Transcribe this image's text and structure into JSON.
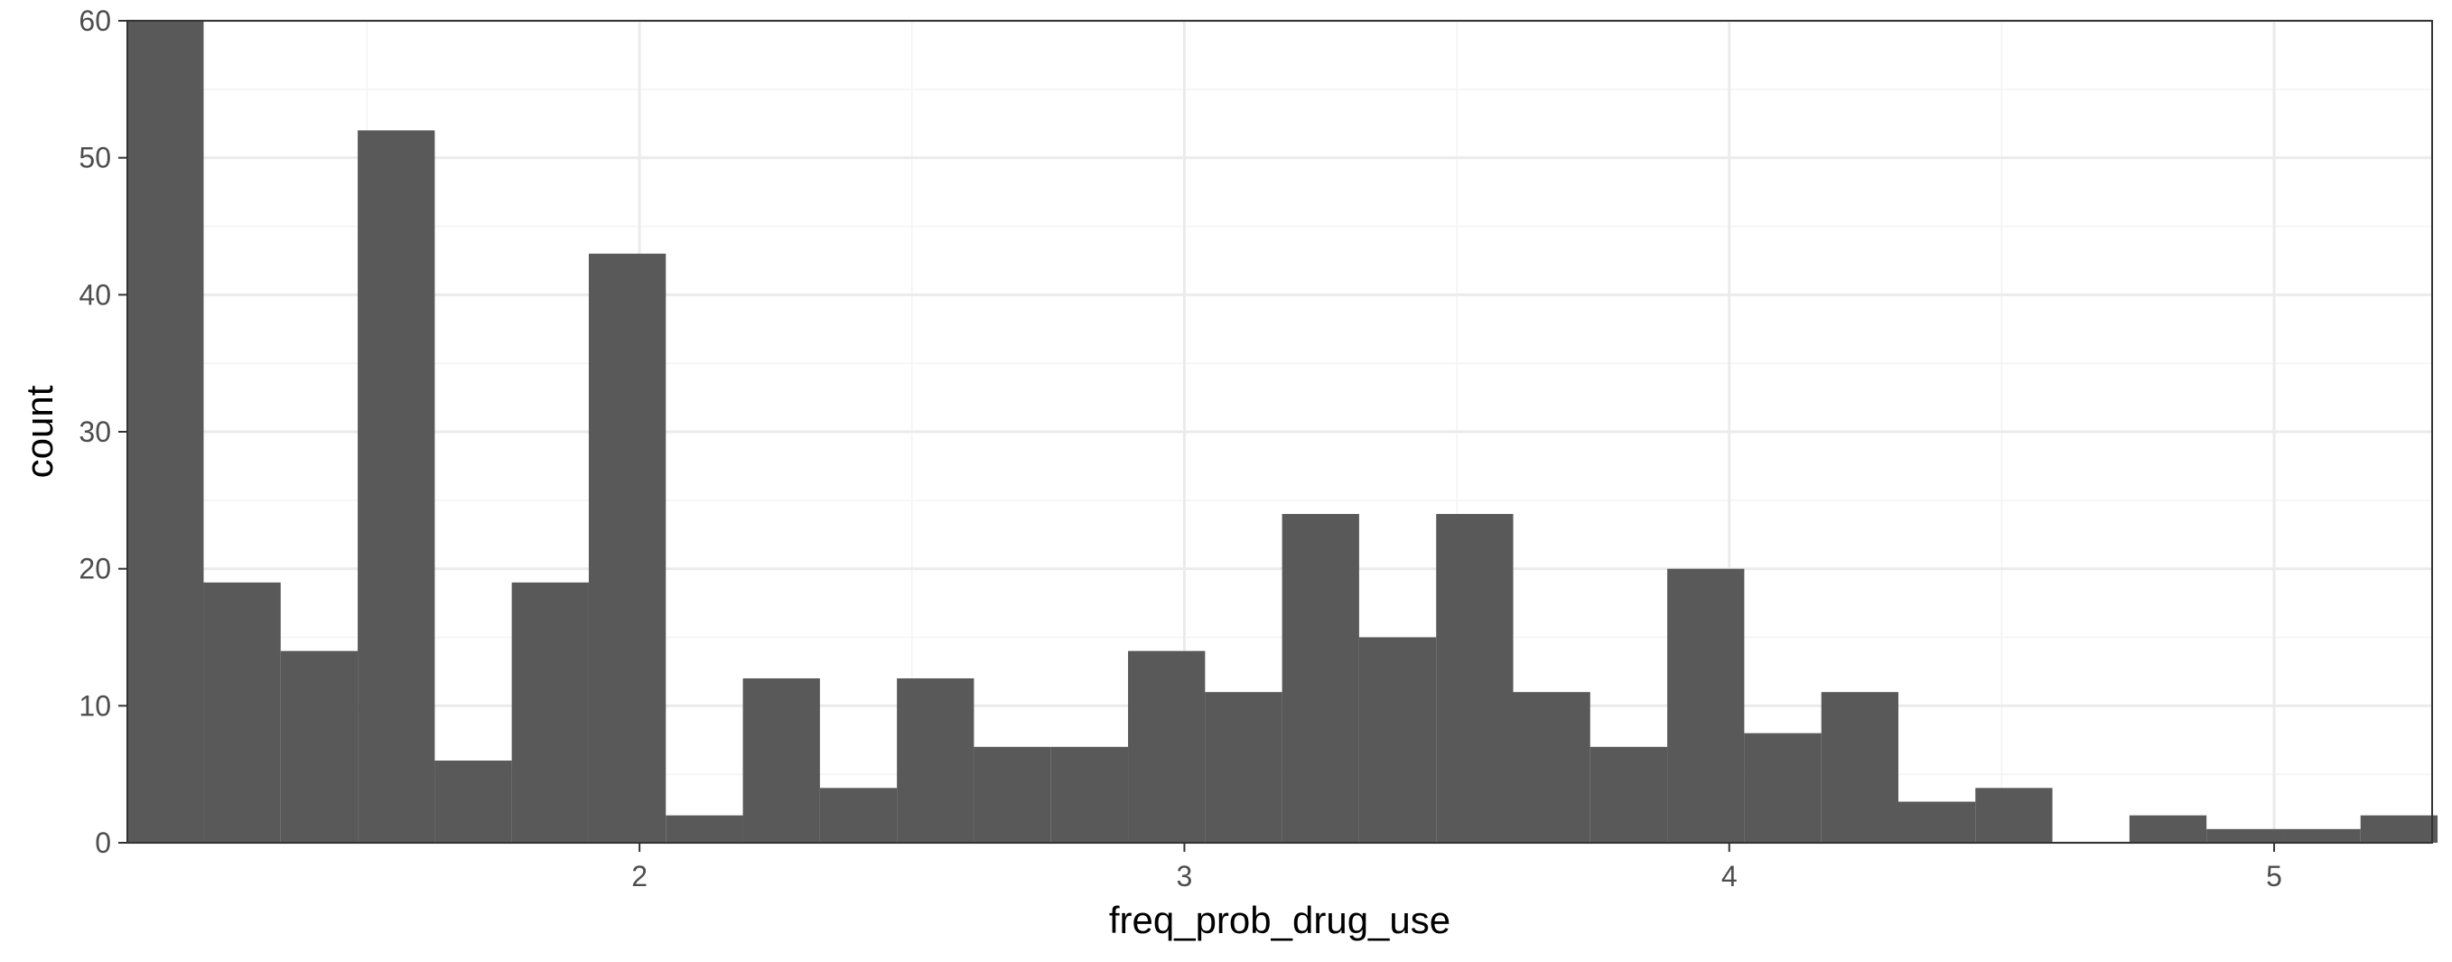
{
  "chart_data": {
    "type": "bar",
    "xlabel": "freq_prob_drug_use",
    "ylabel": "count",
    "xlim": [
      1.06,
      5.29
    ],
    "ylim": [
      0,
      60
    ],
    "x_ticks": [
      2,
      3,
      4,
      5
    ],
    "y_ticks": [
      0,
      10,
      20,
      30,
      40,
      50,
      60
    ],
    "bin_width": 0.1414,
    "bins": [
      {
        "x0": 1.0586,
        "count": 60
      },
      {
        "x0": 1.2,
        "count": 19
      },
      {
        "x0": 1.3414,
        "count": 14
      },
      {
        "x0": 1.4828,
        "count": 52
      },
      {
        "x0": 1.6241,
        "count": 6
      },
      {
        "x0": 1.7655,
        "count": 19
      },
      {
        "x0": 1.9069,
        "count": 43
      },
      {
        "x0": 2.0483,
        "count": 2
      },
      {
        "x0": 2.1897,
        "count": 12
      },
      {
        "x0": 2.331,
        "count": 4
      },
      {
        "x0": 2.4724,
        "count": 12
      },
      {
        "x0": 2.6138,
        "count": 7
      },
      {
        "x0": 2.7552,
        "count": 7
      },
      {
        "x0": 2.8966,
        "count": 14
      },
      {
        "x0": 3.0379,
        "count": 11
      },
      {
        "x0": 3.1793,
        "count": 24
      },
      {
        "x0": 3.3207,
        "count": 15
      },
      {
        "x0": 3.4621,
        "count": 24
      },
      {
        "x0": 3.6034,
        "count": 11
      },
      {
        "x0": 3.7448,
        "count": 7
      },
      {
        "x0": 3.8862,
        "count": 20
      },
      {
        "x0": 4.0276,
        "count": 8
      },
      {
        "x0": 4.169,
        "count": 11
      },
      {
        "x0": 4.3103,
        "count": 3
      },
      {
        "x0": 4.4517,
        "count": 4
      },
      {
        "x0": 4.5931,
        "count": 0
      },
      {
        "x0": 4.7345,
        "count": 2
      },
      {
        "x0": 4.8759,
        "count": 1
      },
      {
        "x0": 5.0172,
        "count": 1
      },
      {
        "x0": 5.1586,
        "count": 2
      }
    ],
    "bar_color": "#595959",
    "grid": true,
    "grid_major_color": "#ebebeb",
    "grid_minor_color": "#f3f3f3",
    "panel_border_color": "#333333"
  }
}
